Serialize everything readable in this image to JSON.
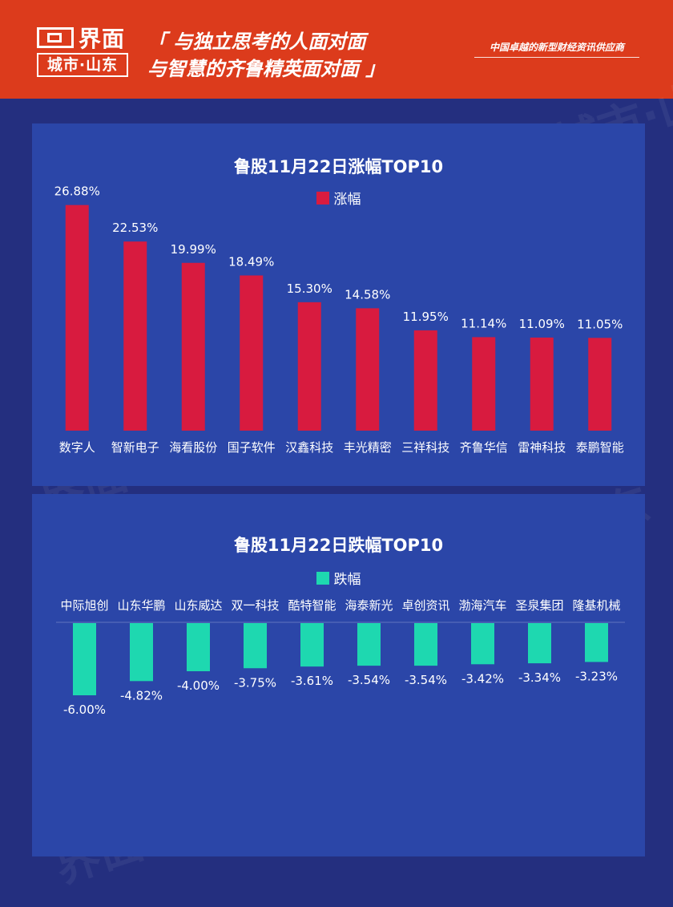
{
  "header": {
    "brand": "界面",
    "brand_sub": "城市·山东",
    "slogan_line1": "「 与独立思考的人面对面",
    "slogan_line2": "与智慧的齐鲁精英面对面 」",
    "tagline": "中国卓越的新型财经资讯供应商"
  },
  "watermark": "界面 城市·山东",
  "colors": {
    "header_bg": "#dc3b1c",
    "page_bg": "#242f7f",
    "panel_bg": "#2b46a8",
    "gain_bar": "#d81b3f",
    "loss_bar": "#1ed8b0"
  },
  "chart_data": [
    {
      "type": "bar",
      "title": "鲁股11月22日涨幅TOP10",
      "legend": "涨幅",
      "legend_position": "top-center",
      "categories": [
        "数字人",
        "智新电子",
        "海看股份",
        "国子软件",
        "汉鑫科技",
        "丰光精密",
        "三祥科技",
        "齐鲁华信",
        "雷神科技",
        "泰鹏智能"
      ],
      "values": [
        26.88,
        22.53,
        19.99,
        18.49,
        15.3,
        14.58,
        11.95,
        11.14,
        11.09,
        11.05
      ],
      "labels": [
        "26.88%",
        "22.53%",
        "19.99%",
        "18.49%",
        "15.30%",
        "14.58%",
        "11.95%",
        "11.14%",
        "11.09%",
        "11.05%"
      ],
      "ylim": [
        0,
        30
      ],
      "grid": false
    },
    {
      "type": "bar",
      "title": "鲁股11月22日跌幅TOP10",
      "legend": "跌幅",
      "legend_position": "top-center",
      "categories": [
        "中际旭创",
        "山东华鹏",
        "山东威达",
        "双一科技",
        "酷特智能",
        "海泰新光",
        "卓创资讯",
        "渤海汽车",
        "圣泉集团",
        "隆基机械"
      ],
      "values": [
        -6.0,
        -4.82,
        -4.0,
        -3.75,
        -3.61,
        -3.54,
        -3.54,
        -3.42,
        -3.34,
        -3.23
      ],
      "labels": [
        "-6.00%",
        "-4.82%",
        "-4.00%",
        "-3.75%",
        "-3.61%",
        "-3.54%",
        "-3.54%",
        "-3.42%",
        "-3.34%",
        "-3.23%"
      ],
      "ylim": [
        -6,
        0
      ],
      "grid": false
    }
  ]
}
